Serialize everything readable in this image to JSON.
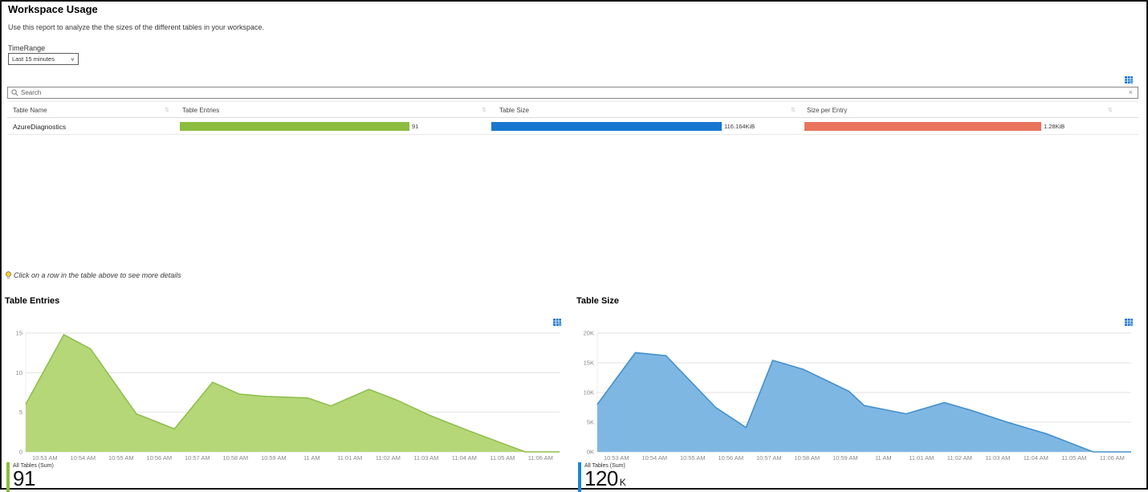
{
  "page": {
    "title": "Workspace Usage",
    "description": "Use this report to analyze the the sizes of the different tables in your workspace."
  },
  "time_range": {
    "label": "TimeRange",
    "value": "Last 15 minutes"
  },
  "search": {
    "placeholder": "Search",
    "clear_glyph": "×"
  },
  "table": {
    "columns": [
      "Table Name",
      "Table Entries",
      "Table Size",
      "Size per Entry"
    ],
    "sort_glyph": "⇅",
    "rows": [
      {
        "table_name": "AzureDiagnostics",
        "table_entries": "91",
        "table_size": "116.164KiB",
        "size_per_entry": "1.28KiB"
      }
    ]
  },
  "tip": {
    "text": "Click on a row in the table above to see more details"
  },
  "colors": {
    "bar_green": "#8cbd3f",
    "bar_blue": "#1777d0",
    "bar_salmon": "#e8745c",
    "export_blue": "#1673d0"
  },
  "chart_data": [
    {
      "type": "area",
      "title": "Table Entries",
      "legend": "All Tables (Sum)",
      "summary_value": "91",
      "summary_suffix": "",
      "fill": "#b5d778",
      "stroke": "#8fbf4d",
      "accent": "#8cbd3f",
      "ylim": [
        0,
        15
      ],
      "y_ticks": [
        {
          "v": 0,
          "label": "0"
        },
        {
          "v": 5,
          "label": "5"
        },
        {
          "v": 10,
          "label": "10"
        },
        {
          "v": 15,
          "label": "15"
        }
      ],
      "x_span_minutes": 14,
      "x_tick_labels": [
        "10:53 AM",
        "10:54 AM",
        "10:55 AM",
        "10:56 AM",
        "10:57 AM",
        "10:58 AM",
        "10:59 AM",
        "11 AM",
        "11:01 AM",
        "11:02 AM",
        "11:03 AM",
        "11:04 AM",
        "11:05 AM",
        "11:06 AM"
      ],
      "points": [
        {
          "t": 0.0,
          "v": 6.0
        },
        {
          "t": 1.0,
          "v": 14.8
        },
        {
          "t": 1.7,
          "v": 13.0
        },
        {
          "t": 2.9,
          "v": 4.8
        },
        {
          "t": 3.9,
          "v": 2.9
        },
        {
          "t": 4.9,
          "v": 8.8
        },
        {
          "t": 5.6,
          "v": 7.3
        },
        {
          "t": 6.3,
          "v": 7.0
        },
        {
          "t": 7.4,
          "v": 6.8
        },
        {
          "t": 8.0,
          "v": 5.8
        },
        {
          "t": 9.0,
          "v": 7.9
        },
        {
          "t": 9.7,
          "v": 6.6
        },
        {
          "t": 10.6,
          "v": 4.6
        },
        {
          "t": 11.6,
          "v": 2.7
        },
        {
          "t": 13.1,
          "v": 0
        },
        {
          "t": 14.0,
          "v": 0
        }
      ]
    },
    {
      "type": "area",
      "title": "Table Size",
      "legend": "All Tables (Sum)",
      "summary_value": "120",
      "summary_suffix": "K",
      "fill": "#7fb7e3",
      "stroke": "#4390cc",
      "accent": "#1a86d9",
      "ylim": [
        0,
        20
      ],
      "y_ticks": [
        {
          "v": 0,
          "label": "0K"
        },
        {
          "v": 5,
          "label": "5K"
        },
        {
          "v": 10,
          "label": "10K"
        },
        {
          "v": 15,
          "label": "15K"
        },
        {
          "v": 20,
          "label": "20K"
        }
      ],
      "x_span_minutes": 14,
      "x_tick_labels": [
        "10:53 AM",
        "10:54 AM",
        "10:55 AM",
        "10:56 AM",
        "10:57 AM",
        "10:58 AM",
        "10:59 AM",
        "11 AM",
        "11:01 AM",
        "11:02 AM",
        "11:03 AM",
        "11:04 AM",
        "11:05 AM",
        "11:06 AM"
      ],
      "points": [
        {
          "t": 0.0,
          "v": 8.0
        },
        {
          "t": 1.0,
          "v": 16.7
        },
        {
          "t": 1.8,
          "v": 16.2
        },
        {
          "t": 3.1,
          "v": 7.5
        },
        {
          "t": 3.9,
          "v": 4.1
        },
        {
          "t": 4.6,
          "v": 15.4
        },
        {
          "t": 5.4,
          "v": 13.9
        },
        {
          "t": 6.6,
          "v": 10.2
        },
        {
          "t": 7.0,
          "v": 7.8
        },
        {
          "t": 8.1,
          "v": 6.4
        },
        {
          "t": 9.1,
          "v": 8.3
        },
        {
          "t": 9.8,
          "v": 7.0
        },
        {
          "t": 10.8,
          "v": 4.9
        },
        {
          "t": 11.8,
          "v": 3.0
        },
        {
          "t": 13.0,
          "v": 0
        },
        {
          "t": 14.0,
          "v": 0
        }
      ]
    }
  ]
}
